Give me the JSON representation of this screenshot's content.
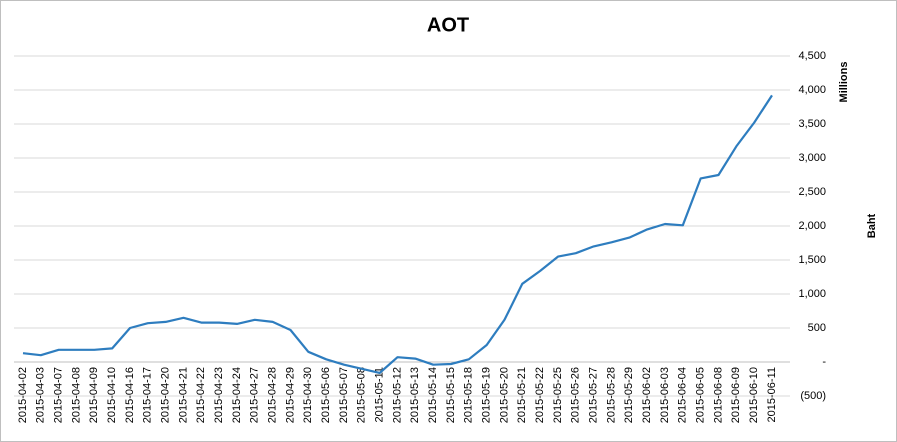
{
  "chart_data": {
    "type": "line",
    "title": "AOT",
    "y_axis_label": "Baht",
    "y_axis_unit": "Millions",
    "categories": [
      "2015-04-02",
      "2015-04-03",
      "2015-04-07",
      "2015-04-08",
      "2015-04-09",
      "2015-04-10",
      "2015-04-16",
      "2015-04-17",
      "2015-04-20",
      "2015-04-21",
      "2015-04-22",
      "2015-04-23",
      "2015-04-24",
      "2015-04-27",
      "2015-04-28",
      "2015-04-29",
      "2015-04-30",
      "2015-05-06",
      "2015-05-07",
      "2015-05-08",
      "2015-05-11",
      "2015-05-12",
      "2015-05-13",
      "2015-05-14",
      "2015-05-15",
      "2015-05-18",
      "2015-05-19",
      "2015-05-20",
      "2015-05-21",
      "2015-05-22",
      "2015-05-25",
      "2015-05-26",
      "2015-05-27",
      "2015-05-28",
      "2015-05-29",
      "2015-06-02",
      "2015-06-03",
      "2015-06-04",
      "2015-06-05",
      "2015-06-08",
      "2015-06-09",
      "2015-06-10",
      "2015-06-11"
    ],
    "values": [
      130,
      100,
      180,
      180,
      180,
      200,
      500,
      570,
      590,
      650,
      580,
      580,
      560,
      620,
      590,
      470,
      150,
      40,
      -40,
      -100,
      -160,
      70,
      50,
      -40,
      -30,
      40,
      250,
      620,
      1150,
      1340,
      1550,
      1600,
      1700,
      1760,
      1830,
      1950,
      2030,
      2010,
      2700,
      2750,
      3170,
      3520,
      3920
    ],
    "color": "#2e7dbf",
    "ylim": [
      -500,
      4500
    ],
    "yticks": [
      {
        "value": -500,
        "label": "(500)"
      },
      {
        "value": 0,
        "label": "-"
      },
      500,
      {
        "value": 1000,
        "label": "1,000"
      },
      {
        "value": 1500,
        "label": "1,500"
      },
      {
        "value": 2000,
        "label": "2,000"
      },
      {
        "value": 2500,
        "label": "2,500"
      },
      {
        "value": 3000,
        "label": "3,000"
      },
      {
        "value": 3500,
        "label": "3,500"
      },
      {
        "value": 4000,
        "label": "4,000"
      },
      {
        "value": 4500,
        "label": "4,500"
      }
    ],
    "grid": true
  }
}
